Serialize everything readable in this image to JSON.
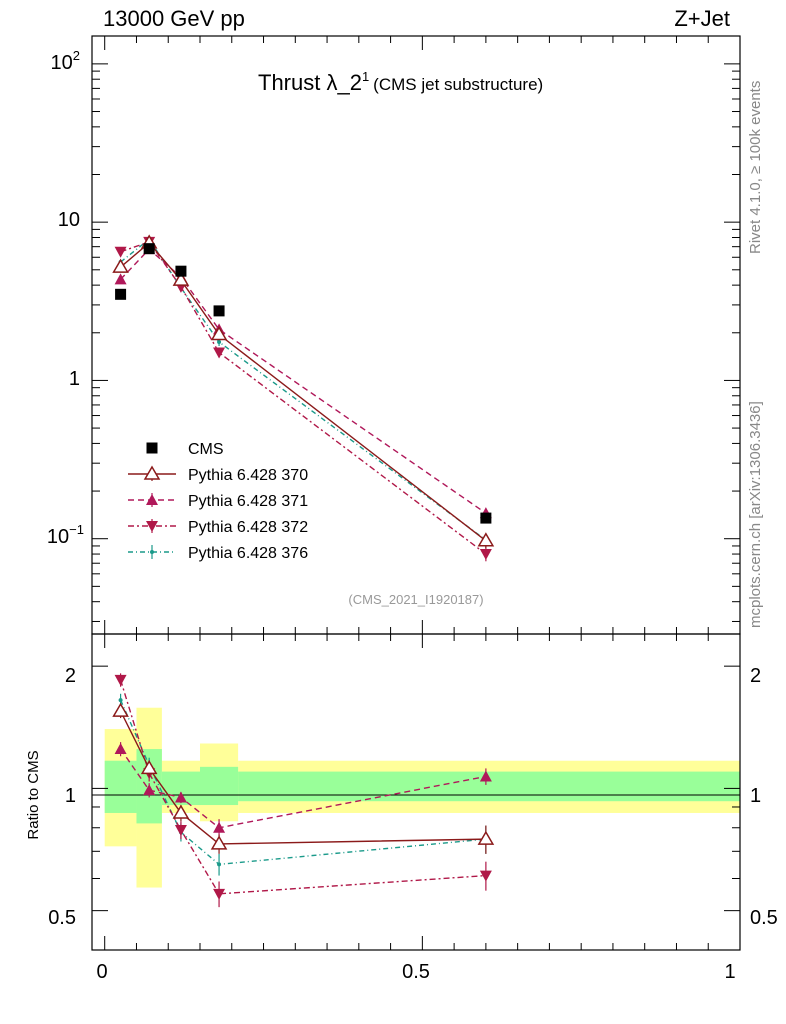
{
  "header": {
    "left": "13000 GeV pp",
    "right": "Z+Jet",
    "side_top": "Rivet 4.1.0, ≥ 100k events",
    "side_bottom": "mcplots.cern.ch [arXiv:1306.3436]"
  },
  "colors": {
    "data": "#000000",
    "p370": "#8b1a1a",
    "p371": "#b0185a",
    "p372": "#b01848",
    "p376": "#1a9a8a",
    "band_inner": "#99ff99",
    "band_outer": "#ffff99"
  },
  "chart_data": [
    {
      "type": "line",
      "panel": "main",
      "title": "Thrust λ_2",
      "title_sup": "1",
      "subtitle": "(CMS jet substructure)",
      "analysis_tag": "(CMS_2021_I1920187)",
      "yscale": "log",
      "ylim": [
        0.025,
        150
      ],
      "xlim": [
        -0.02,
        1.0
      ],
      "ytick_labels": {
        "e2": "10",
        "e2_sup": "2",
        "ten": "10",
        "one": "1",
        "em1": "10",
        "em1_sup": "−1"
      },
      "x": [
        0.025,
        0.07,
        0.12,
        0.18,
        0.6
      ],
      "series": [
        {
          "name": "CMS",
          "key": "cms",
          "values": [
            3.5,
            6.8,
            4.9,
            2.75,
            0.135
          ],
          "marker": "square"
        },
        {
          "name": "Pythia 6.428 370",
          "key": "p370",
          "values": [
            5.2,
            7.4,
            4.3,
            1.95,
            0.097
          ],
          "marker": "triangle-up-open",
          "errors": [
            0.2,
            0.3,
            0.2,
            0.1,
            0.01
          ]
        },
        {
          "name": "Pythia 6.428 371",
          "key": "p371",
          "values": [
            4.35,
            6.75,
            4.5,
            2.1,
            0.145
          ],
          "marker": "triangle-up",
          "errors": [
            0.2,
            0.3,
            0.2,
            0.1,
            0.01
          ]
        },
        {
          "name": "Pythia 6.428 372",
          "key": "p372",
          "values": [
            6.5,
            7.5,
            3.9,
            1.5,
            0.08
          ],
          "marker": "triangle-down",
          "errors": [
            0.2,
            0.3,
            0.2,
            0.1,
            0.008
          ]
        },
        {
          "name": "Pythia 6.428 376",
          "key": "p376",
          "values": [
            5.6,
            7.8,
            3.85,
            1.75,
            0.098
          ],
          "marker": "dot",
          "errors": [
            0.2,
            0.3,
            0.2,
            0.1,
            0.01
          ]
        }
      ]
    },
    {
      "type": "line",
      "panel": "ratio",
      "ylabel": "Ratio to CMS",
      "yscale": "log",
      "ylim": [
        0.4,
        2.4
      ],
      "xlim": [
        -0.02,
        1.0
      ],
      "yticks": [
        0.5,
        1,
        2
      ],
      "ytick_labels": [
        "0.5",
        "1",
        "2"
      ],
      "xticks": [
        0,
        0.5,
        1
      ],
      "xtick_labels": [
        "0",
        "0.5",
        "1"
      ],
      "bands": [
        {
          "x0": 0.0,
          "x1": 0.05,
          "inner": [
            0.87,
            1.17
          ],
          "outer": [
            0.72,
            1.4
          ]
        },
        {
          "x0": 0.05,
          "x1": 0.09,
          "inner": [
            0.82,
            1.25
          ],
          "outer": [
            0.57,
            1.58
          ]
        },
        {
          "x0": 0.09,
          "x1": 0.15,
          "inner": [
            0.91,
            1.1
          ],
          "outer": [
            0.87,
            1.17
          ]
        },
        {
          "x0": 0.15,
          "x1": 0.21,
          "inner": [
            0.91,
            1.13
          ],
          "outer": [
            0.83,
            1.29
          ]
        },
        {
          "x0": 0.21,
          "x1": 1.0,
          "inner": [
            0.93,
            1.1
          ],
          "outer": [
            0.87,
            1.17
          ]
        }
      ],
      "x": [
        0.025,
        0.07,
        0.12,
        0.18,
        0.6
      ],
      "series": [
        {
          "name": "Pythia 6.428 370",
          "key": "p370",
          "values": [
            1.55,
            1.12,
            0.87,
            0.73,
            0.75
          ],
          "marker": "triangle-up-open",
          "errors": [
            0.06,
            0.05,
            0.04,
            0.04,
            0.06
          ]
        },
        {
          "name": "Pythia 6.428 371",
          "key": "p371",
          "values": [
            1.25,
            0.99,
            0.95,
            0.8,
            1.07
          ],
          "marker": "triangle-up",
          "errors": [
            0.05,
            0.04,
            0.03,
            0.04,
            0.05
          ]
        },
        {
          "name": "Pythia 6.428 372",
          "key": "p372",
          "values": [
            1.85,
            1.09,
            0.79,
            0.55,
            0.61
          ],
          "marker": "triangle-down",
          "errors": [
            0.07,
            0.05,
            0.04,
            0.04,
            0.05
          ]
        },
        {
          "name": "Pythia 6.428 376",
          "key": "p376",
          "values": [
            1.65,
            1.14,
            0.78,
            0.65,
            0.75
          ],
          "marker": "dot",
          "errors": [
            0.06,
            0.05,
            0.04,
            0.04,
            0.06
          ]
        }
      ]
    }
  ]
}
